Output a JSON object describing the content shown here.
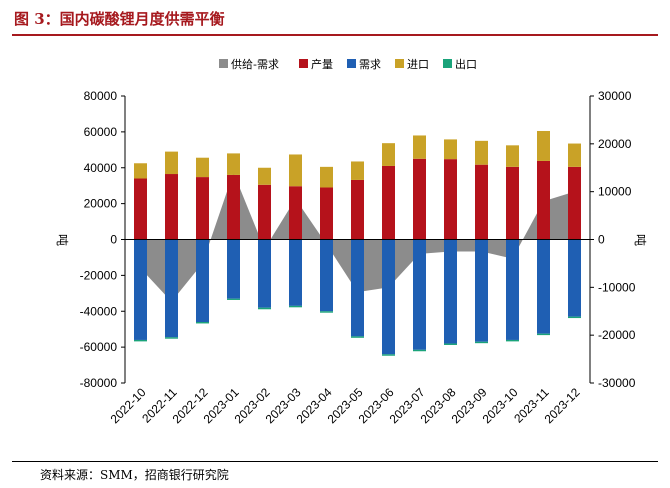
{
  "figure": {
    "title": "图 3：国内碳酸锂月度供需平衡",
    "source": "资料来源：SMM，招商银行研究院"
  },
  "colors": {
    "title": "#a6191e",
    "supply_demand": "#8c8c8c",
    "production": "#b5121b",
    "demand": "#1f5fb3",
    "import": "#c9a227",
    "export": "#1aa37a"
  },
  "chart_data": {
    "type": "bar",
    "categories": [
      "2022-10",
      "2022-11",
      "2022-12",
      "2023-01",
      "2023-02",
      "2023-03",
      "2023-04",
      "2023-05",
      "2023-06",
      "2023-07",
      "2023-08",
      "2023-09",
      "2023-10",
      "2023-11",
      "2023-12"
    ],
    "series": [
      {
        "name": "供给-需求",
        "type": "area",
        "axis": "right",
        "values": [
          -6000,
          -13000,
          -5000,
          14000,
          -2000,
          8500,
          -1000,
          -11000,
          -10000,
          -3000,
          -2500,
          -2500,
          -4000,
          8000,
          10000
        ]
      },
      {
        "name": "产量",
        "type": "bar",
        "axis": "left",
        "stack": "supply",
        "values": [
          34000,
          36500,
          34800,
          36000,
          30500,
          29700,
          29000,
          33200,
          41000,
          45000,
          44800,
          41700,
          40500,
          43800,
          40500
        ]
      },
      {
        "name": "需求",
        "type": "bar",
        "axis": "left",
        "values": [
          -56000,
          -54500,
          -46000,
          -33000,
          -38000,
          -37000,
          -40000,
          -54000,
          -64000,
          -61500,
          -58000,
          -57000,
          -56000,
          -52500,
          -43000
        ]
      },
      {
        "name": "进口",
        "type": "bar",
        "axis": "left",
        "stack": "supply",
        "values": [
          8500,
          12500,
          10800,
          12000,
          9500,
          17700,
          11500,
          10300,
          12700,
          13000,
          11000,
          13300,
          12000,
          16700,
          13000
        ]
      },
      {
        "name": "出口",
        "type": "bar",
        "axis": "left",
        "values": [
          -800,
          -800,
          -800,
          -700,
          -900,
          -800,
          -800,
          -800,
          -800,
          -800,
          -800,
          -800,
          -800,
          -800,
          -800
        ]
      }
    ],
    "left_axis": {
      "min": -80000,
      "max": 80000,
      "step": 20000,
      "label": "吨",
      "ticks": [
        "80000",
        "60000",
        "40000",
        "20000",
        "0",
        "-20000",
        "-40000",
        "-60000",
        "-80000"
      ]
    },
    "right_axis": {
      "min": -30000,
      "max": 30000,
      "step": 10000,
      "label": "吨",
      "ticks": [
        "30000",
        "20000",
        "10000",
        "0",
        "-10000",
        "-20000",
        "-30000"
      ]
    },
    "legend": [
      "供给-需求",
      "产量",
      "需求",
      "进口",
      "出口"
    ],
    "legend_position": "top",
    "grid": false
  }
}
